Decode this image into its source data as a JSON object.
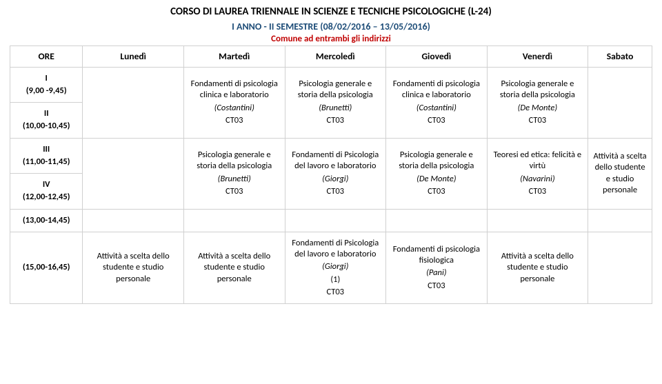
{
  "title": "CORSO DI LAUREA TRIENNALE IN SCIENZE E TECNICHE PSICOLOGICHE (L-24)",
  "subtitle": "I ANNO - II SEMESTRE (08/02/2016 – 13/05/2016)",
  "note": "Comune ad entrambi gli indirizzi",
  "headers": {
    "ore": "ORE",
    "mon": "Lunedì",
    "tue": "Martedì",
    "wed": "Mercoledì",
    "thu": "Giovedì",
    "fri": "Venerdì",
    "sat": "Sabato"
  },
  "slots": {
    "s1": {
      "roman": "I",
      "range": "(9,00 -9,45)"
    },
    "s2": {
      "roman": "II",
      "range": "(10,00-10,45)"
    },
    "s3": {
      "roman": "III",
      "range": "(11,00-11,45)"
    },
    "s4": {
      "roman": "IV",
      "range": "(12,00-12,45)"
    },
    "s5": {
      "range": "(13,00-14,45)"
    },
    "s6": {
      "range": "(15,00-16,45)"
    }
  },
  "r1": {
    "tue": {
      "l1": "Fondamenti di psicologia clinica e laboratorio",
      "l2": "(Costantini)",
      "l3": "CT03"
    },
    "wed": {
      "l1": "Psicologia generale e storia della psicologia",
      "l2": "(Brunetti)",
      "l3": "CT03"
    },
    "thu": {
      "l1": "Fondamenti di psicologia clinica e laboratorio",
      "l2": "(Costantini)",
      "l3": "CT03"
    },
    "fri": {
      "l1": "Psicologia generale e storia della psicologia",
      "l2": "(De Monte)",
      "l3": "CT03"
    }
  },
  "r3": {
    "tue": {
      "l1": "Psicologia generale e storia della psicologia",
      "l2": "(Brunetti)",
      "l3": "CT03"
    },
    "wed": {
      "l1": "Fondamenti di Psicologia del lavoro e laboratorio",
      "l2": "(Giorgi)",
      "l3": "CT03"
    },
    "thu": {
      "l1": "Psicologia generale e storia della psicologia",
      "l2": "(De Monte)",
      "l3": "CT03"
    },
    "fri": {
      "l1": "Teoresi ed etica: felicità e virtù",
      "l2": "(Navarini)",
      "l3": "CT03"
    },
    "sat": {
      "l1": "Attività a scelta dello studente e studio personale"
    }
  },
  "r6": {
    "mon": {
      "l1": "Attività a scelta dello studente e studio personale"
    },
    "tue": {
      "l1": "Attività a scelta dello studente e studio personale"
    },
    "wed": {
      "l1": "Fondamenti di Psicologia del lavoro e laboratorio",
      "l2": "(Giorgi)",
      "l3": "(1)",
      "l4": "CT03"
    },
    "thu": {
      "l1": "Fondamenti di psicologia fisiologica",
      "l2": "(Pani)",
      "l3": "CT03"
    },
    "fri": {
      "l1": "Attività a scelta dello studente e studio personale"
    }
  }
}
